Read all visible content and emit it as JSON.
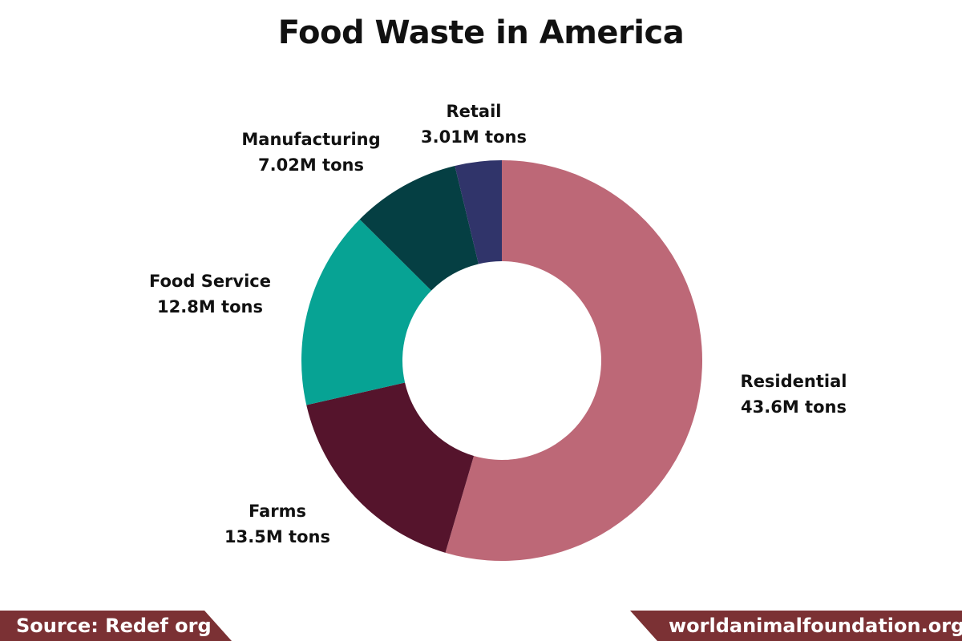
{
  "title": "Food Waste in America",
  "chart_data": {
    "type": "pie",
    "donut": true,
    "title": "Food Waste in America",
    "unit": "M tons",
    "slices": [
      {
        "name": "Residential",
        "value": 43.6,
        "display": "43.6M tons",
        "color": "#bd6877"
      },
      {
        "name": "Farms",
        "value": 13.5,
        "display": "13.5M tons",
        "color": "#55142c"
      },
      {
        "name": "Food Service",
        "value": 12.8,
        "display": "12.8M tons",
        "color": "#07a394"
      },
      {
        "name": "Manufacturing",
        "value": 7.02,
        "display": "7.02M tons",
        "color": "#053f43"
      },
      {
        "name": "Retail",
        "value": 3.01,
        "display": "3.01M tons",
        "color": "#30346a"
      }
    ]
  },
  "footer": {
    "source": "Source: Redef org",
    "website": "worldanimalfoundation.org",
    "banner_color": "#7b3134"
  }
}
